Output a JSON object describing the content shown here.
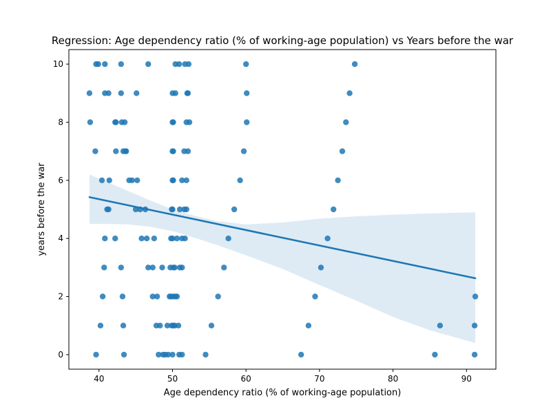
{
  "chart_data": {
    "type": "scatter",
    "title": "Regression: Age dependency ratio (% of working-age population) vs Years before the war",
    "xlabel": "Age dependency ratio (% of working-age population)",
    "ylabel": "years before the war",
    "xlim": [
      35.9,
      94.0
    ],
    "ylim": [
      -0.5,
      10.5
    ],
    "xticks": [
      40,
      50,
      60,
      70,
      80,
      90
    ],
    "yticks": [
      0,
      2,
      4,
      6,
      8,
      10
    ],
    "grid": false,
    "colors": {
      "points": "#1f77b4",
      "line": "#1f77b4",
      "band": "#1f77b4"
    },
    "points": [
      [
        39.6,
        10
      ],
      [
        39.9,
        10
      ],
      [
        40.8,
        10
      ],
      [
        43.0,
        10
      ],
      [
        46.7,
        10
      ],
      [
        50.4,
        10
      ],
      [
        50.9,
        10
      ],
      [
        51.7,
        10
      ],
      [
        52.2,
        10
      ],
      [
        60.0,
        10
      ],
      [
        74.8,
        10
      ],
      [
        38.7,
        9
      ],
      [
        40.8,
        9
      ],
      [
        41.3,
        9
      ],
      [
        43.0,
        9
      ],
      [
        45.1,
        9
      ],
      [
        50.0,
        9
      ],
      [
        50.4,
        9
      ],
      [
        52.0,
        9
      ],
      [
        52.1,
        9
      ],
      [
        60.1,
        9
      ],
      [
        74.1,
        9
      ],
      [
        38.8,
        8
      ],
      [
        42.2,
        8
      ],
      [
        42.3,
        8
      ],
      [
        43.1,
        8
      ],
      [
        43.5,
        8
      ],
      [
        50.0,
        8
      ],
      [
        50.1,
        8
      ],
      [
        51.9,
        8
      ],
      [
        52.3,
        8
      ],
      [
        60.1,
        8
      ],
      [
        73.6,
        8
      ],
      [
        39.5,
        7
      ],
      [
        42.3,
        7
      ],
      [
        43.3,
        7
      ],
      [
        43.6,
        7
      ],
      [
        43.7,
        7
      ],
      [
        50.0,
        7
      ],
      [
        50.1,
        7
      ],
      [
        51.6,
        7
      ],
      [
        52.1,
        7
      ],
      [
        59.7,
        7
      ],
      [
        73.1,
        7
      ],
      [
        40.4,
        6
      ],
      [
        41.4,
        6
      ],
      [
        44.1,
        6
      ],
      [
        44.5,
        6
      ],
      [
        45.2,
        6
      ],
      [
        50.0,
        6
      ],
      [
        50.1,
        6
      ],
      [
        51.3,
        6
      ],
      [
        51.9,
        6
      ],
      [
        59.2,
        6
      ],
      [
        72.5,
        6
      ],
      [
        41.1,
        5
      ],
      [
        41.3,
        5
      ],
      [
        45.0,
        5
      ],
      [
        45.6,
        5
      ],
      [
        46.3,
        5
      ],
      [
        49.9,
        5
      ],
      [
        50.0,
        5
      ],
      [
        51.0,
        5
      ],
      [
        51.6,
        5
      ],
      [
        51.9,
        5
      ],
      [
        58.4,
        5
      ],
      [
        71.9,
        5
      ],
      [
        40.8,
        4
      ],
      [
        42.2,
        4
      ],
      [
        45.8,
        4
      ],
      [
        46.5,
        4
      ],
      [
        47.5,
        4
      ],
      [
        49.8,
        4
      ],
      [
        50.0,
        4
      ],
      [
        50.6,
        4
      ],
      [
        51.3,
        4
      ],
      [
        51.7,
        4
      ],
      [
        57.6,
        4
      ],
      [
        71.1,
        4
      ],
      [
        40.7,
        3
      ],
      [
        43.0,
        3
      ],
      [
        46.7,
        3
      ],
      [
        47.3,
        3
      ],
      [
        48.6,
        3
      ],
      [
        49.7,
        3
      ],
      [
        50.1,
        3
      ],
      [
        50.3,
        3
      ],
      [
        51.0,
        3
      ],
      [
        51.3,
        3
      ],
      [
        57.0,
        3
      ],
      [
        70.2,
        3
      ],
      [
        40.5,
        2
      ],
      [
        43.2,
        2
      ],
      [
        47.3,
        2
      ],
      [
        47.9,
        2
      ],
      [
        49.6,
        2
      ],
      [
        49.8,
        2
      ],
      [
        50.1,
        2
      ],
      [
        50.4,
        2
      ],
      [
        50.6,
        2
      ],
      [
        56.2,
        2
      ],
      [
        69.4,
        2
      ],
      [
        91.2,
        2
      ],
      [
        40.2,
        1
      ],
      [
        43.3,
        1
      ],
      [
        47.8,
        1
      ],
      [
        48.3,
        1
      ],
      [
        49.3,
        1
      ],
      [
        49.9,
        1
      ],
      [
        50.1,
        1
      ],
      [
        50.3,
        1
      ],
      [
        50.8,
        1
      ],
      [
        55.3,
        1
      ],
      [
        68.5,
        1
      ],
      [
        86.4,
        1
      ],
      [
        91.1,
        1
      ],
      [
        39.6,
        0
      ],
      [
        43.4,
        0
      ],
      [
        48.1,
        0
      ],
      [
        48.7,
        0
      ],
      [
        49.0,
        0
      ],
      [
        49.4,
        0
      ],
      [
        50.0,
        0
      ],
      [
        50.9,
        0
      ],
      [
        51.3,
        0
      ],
      [
        54.5,
        0
      ],
      [
        67.5,
        0
      ],
      [
        85.7,
        0
      ],
      [
        91.1,
        0
      ]
    ],
    "regression": {
      "x": [
        38.7,
        91.2
      ],
      "y": [
        5.42,
        2.63
      ]
    },
    "confidence_band": {
      "x": [
        38.7,
        41.0,
        44.0,
        47.0,
        50.0,
        53.0,
        56.0,
        60.0,
        65.0,
        70.0,
        75.0,
        80.0,
        85.0,
        91.2
      ],
      "upper": [
        6.2,
        5.95,
        5.63,
        5.3,
        5.0,
        4.78,
        4.6,
        4.48,
        4.55,
        4.68,
        4.76,
        4.82,
        4.86,
        4.9
      ],
      "lower": [
        4.5,
        4.5,
        4.48,
        4.4,
        4.25,
        4.02,
        3.78,
        3.42,
        2.95,
        2.4,
        1.86,
        1.3,
        0.84,
        0.4
      ]
    }
  }
}
